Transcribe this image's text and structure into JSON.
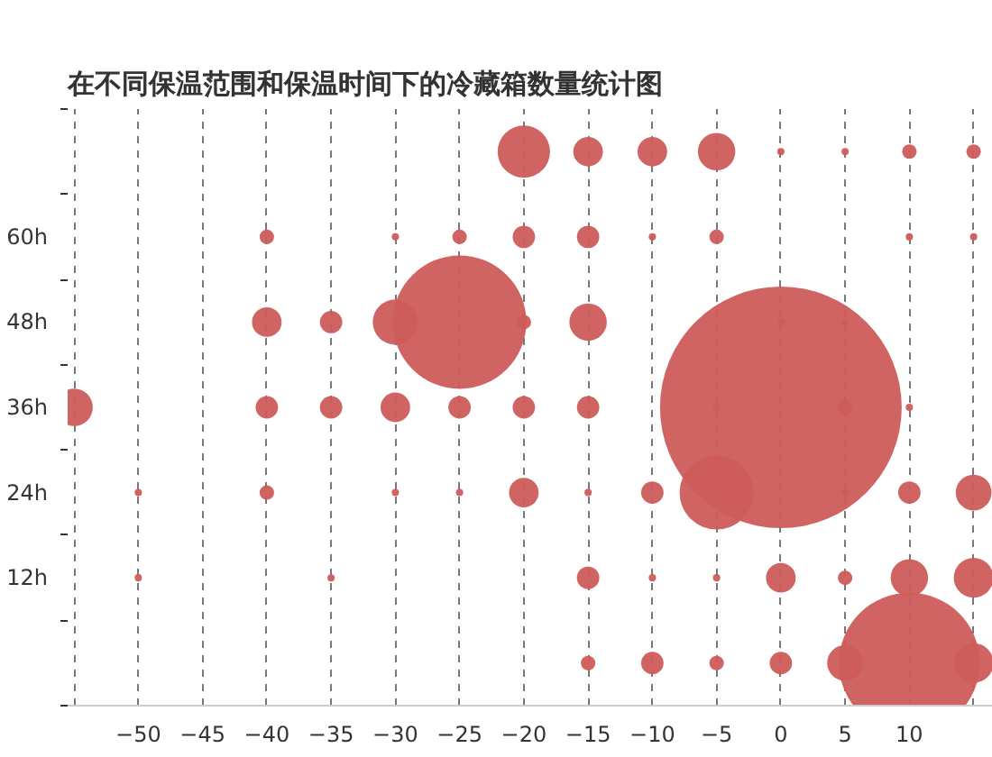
{
  "chart_data": {
    "type": "bubble",
    "title": "在不同保温范围和保温时间下的冷藏箱数量统计图",
    "xlim": [
      -55.5,
      16.5
    ],
    "xticks": [
      {
        "value": -55,
        "label": null
      },
      -50,
      -45,
      -40,
      -35,
      -30,
      -25,
      -20,
      -15,
      -10,
      -5,
      0,
      5,
      10,
      {
        "value": 15,
        "label": null
      }
    ],
    "ylim": [
      -6,
      78
    ],
    "yticks": [
      {
        "value": -6,
        "label": null
      },
      {
        "value": 6,
        "label": null
      },
      {
        "value": 12,
        "label": "12h"
      },
      {
        "value": 18,
        "label": null
      },
      {
        "value": 24,
        "label": "24h"
      },
      {
        "value": 30,
        "label": null
      },
      {
        "value": 36,
        "label": "36h"
      },
      {
        "value": 42,
        "label": null
      },
      {
        "value": 48,
        "label": "48h"
      },
      {
        "value": 54,
        "label": null
      },
      {
        "value": 60,
        "label": "60h"
      },
      {
        "value": 66,
        "label": null
      },
      {
        "value": 78,
        "label": null
      }
    ],
    "grid": "x",
    "series": [
      {
        "color": "#cd5c5a",
        "x": [
          -20,
          -15,
          -10,
          -5,
          0,
          5,
          10,
          15,
          -40,
          -30,
          -25,
          -20,
          -15,
          -10,
          -5,
          10,
          15,
          -40,
          -35,
          -30,
          -25,
          -20,
          -15,
          0,
          5,
          -55,
          -40,
          -35,
          -30,
          -25,
          -20,
          -15,
          -5,
          0,
          5,
          10,
          -50,
          -40,
          -30,
          -25,
          -20,
          -15,
          -10,
          -5,
          5,
          10,
          15,
          -50,
          -35,
          -15,
          -10,
          -5,
          0,
          5,
          10,
          15,
          -15,
          -10,
          -5,
          0,
          5,
          10,
          15
        ],
        "values": [
          72,
          72,
          72,
          72,
          72,
          72,
          72,
          72,
          60,
          60,
          60,
          60,
          60,
          60,
          60,
          60,
          60,
          48,
          48,
          48,
          48,
          48,
          48,
          48,
          48,
          36,
          36,
          36,
          36,
          36,
          36,
          36,
          36,
          36,
          36,
          36,
          24,
          24,
          24,
          24,
          24,
          24,
          24,
          24,
          24,
          24,
          24,
          12,
          12,
          12,
          12,
          12,
          12,
          12,
          12,
          12,
          0,
          0,
          0,
          0,
          0,
          0,
          0
        ],
        "sizes": [
          0.047,
          0.015,
          0.015,
          0.024,
          0.0009,
          0.0009,
          0.0036,
          0.0036,
          0.0036,
          0.0009,
          0.0036,
          0.0086,
          0.0086,
          0.0009,
          0.0036,
          0.0009,
          0.0009,
          0.015,
          0.0086,
          0.035,
          0.305,
          0.0036,
          0.024,
          0.0009,
          0.0009,
          0.024,
          0.0086,
          0.0086,
          0.015,
          0.0086,
          0.0086,
          0.0086,
          0.0009,
          1,
          0.0036,
          0.0009,
          0.0009,
          0.0036,
          0.0009,
          0.0009,
          0.015,
          0.0009,
          0.0086,
          0.094,
          0.0009,
          0.0086,
          0.022,
          0.0009,
          0.0009,
          0.0086,
          0.0009,
          0.0009,
          0.015,
          0.0036,
          0.024,
          0.027,
          0.0036,
          0.0086,
          0.0036,
          0.0086,
          0.022,
          0.339,
          0.027
        ]
      }
    ]
  }
}
